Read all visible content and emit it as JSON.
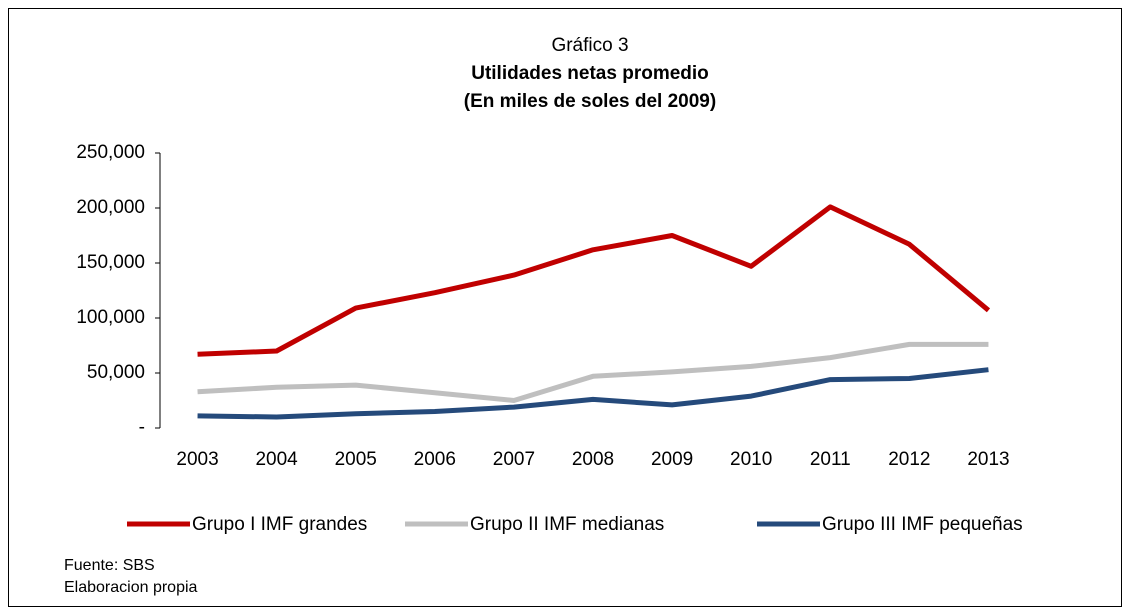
{
  "chart_data": {
    "type": "line",
    "title": [
      "Gráfico 3",
      "Utilidades netas promedio",
      "(En miles de soles del 2009)"
    ],
    "categories": [
      "2003",
      "2004",
      "2005",
      "2006",
      "2007",
      "2008",
      "2009",
      "2010",
      "2011",
      "2012",
      "2013"
    ],
    "series": [
      {
        "name": "Grupo I IMF grandes",
        "color": "#c00000",
        "values": [
          67000,
          70000,
          109000,
          123000,
          139000,
          162000,
          175000,
          147000,
          201000,
          167000,
          107000
        ]
      },
      {
        "name": "Grupo II IMF medianas",
        "color": "#bfbfbf",
        "values": [
          33000,
          37000,
          39000,
          32000,
          25000,
          47000,
          51000,
          56000,
          64000,
          76000,
          76000
        ]
      },
      {
        "name": "Grupo III IMF pequeñas",
        "color": "#254a7b",
        "values": [
          11000,
          10000,
          13000,
          15000,
          19000,
          26000,
          21000,
          29000,
          44000,
          45000,
          53000
        ]
      }
    ],
    "ylim": [
      0,
      250000
    ],
    "yticks": [
      {
        "value": 0,
        "label": "-"
      },
      {
        "value": 50000,
        "label": "50,000"
      },
      {
        "value": 100000,
        "label": "100,000"
      },
      {
        "value": 150000,
        "label": "150,000"
      },
      {
        "value": 200000,
        "label": "200,000"
      },
      {
        "value": 250000,
        "label": "250,000"
      }
    ],
    "legend": "bottom",
    "notes": [
      "Fuente: SBS",
      "Elaboracion propia"
    ]
  }
}
